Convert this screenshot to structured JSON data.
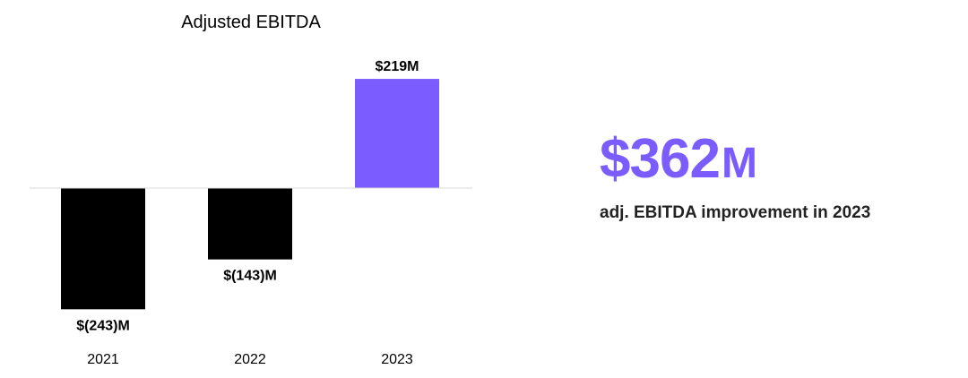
{
  "chart_data": {
    "type": "bar",
    "title": "Adjusted EBITDA",
    "categories": [
      "2021",
      "2022",
      "2023"
    ],
    "values": [
      -243,
      -143,
      219
    ],
    "value_labels": [
      "$(243)M",
      "$(143)M",
      "$219M"
    ],
    "unit": "M",
    "bar_colors": [
      "#000000",
      "#000000",
      "#7b5cff"
    ],
    "grid": false,
    "legend": "none"
  },
  "kpi": {
    "number": "$362",
    "unit": "M",
    "caption": "adj. EBITDA improvement in 2023",
    "color": "#7b5cff"
  }
}
